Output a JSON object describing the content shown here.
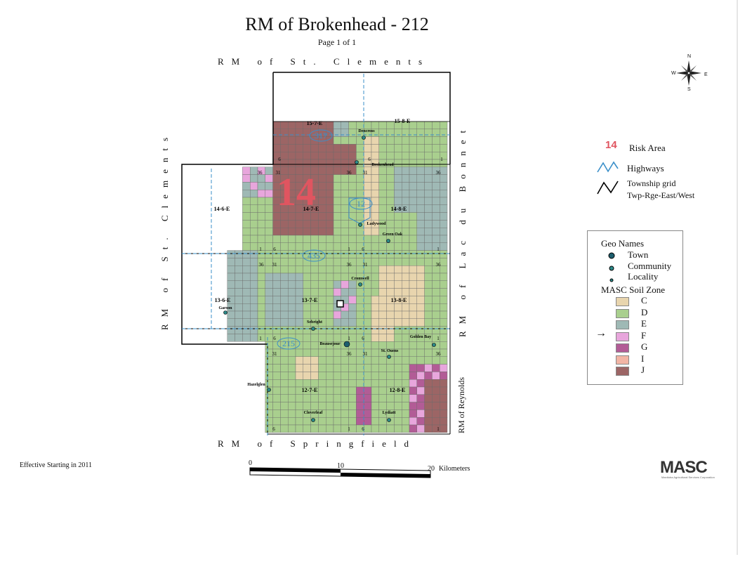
{
  "title": "RM of Brokenhead - 212",
  "subtitle": "Page 1 of 1",
  "borders": {
    "top": "RM of St. Clements",
    "left": "RM of St. Clements",
    "right": "RM of Lac du Bonnet",
    "bottom": "RM of Springfield",
    "bottom_right": "RM of Reynolds"
  },
  "compass": {
    "n": "N",
    "s": "S",
    "e": "E",
    "w": "W"
  },
  "legend": {
    "risk_area_number": "14",
    "risk_area_label": "Risk Area",
    "highways_label": "Highways",
    "township_label_1": "Township grid",
    "township_label_2": "Twp-Rge-East/West",
    "geo_names_title": "Geo Names",
    "town": "Town",
    "community": "Community",
    "locality": "Locality",
    "soil_zone_title": "MASC Soil Zone",
    "zones": [
      {
        "code": "C",
        "color": "#e8d5ae"
      },
      {
        "code": "D",
        "color": "#a9cf8e"
      },
      {
        "code": "E",
        "color": "#9fb9b5"
      },
      {
        "code": "F",
        "color": "#e8a6dc"
      },
      {
        "code": "G",
        "color": "#b25c96"
      },
      {
        "code": "I",
        "color": "#f2b5a5"
      },
      {
        "code": "J",
        "color": "#9c6565"
      }
    ],
    "arrow_marker": "→"
  },
  "map": {
    "risk_number": "14",
    "townships": [
      "15-7-E",
      "15-8-E",
      "14-6-E",
      "14-7-E",
      "14-8-E",
      "13-6-E",
      "13-7-E",
      "13-8-E",
      "12-7-E",
      "12-8-E"
    ],
    "highways": [
      "317",
      "12",
      "435",
      "215"
    ],
    "places": [
      "Dencross",
      "Brokenhead",
      "Ladywood",
      "Green Oak",
      "Cromwell",
      "Garson",
      "Sebright",
      "Beausejour",
      "Golden Bay",
      "St. Ouens",
      "Hazelglen",
      "Cloverleaf",
      "Lydiatt"
    ],
    "section_numbers": [
      "1",
      "6",
      "36",
      "31"
    ]
  },
  "scale": {
    "zero": "0",
    "mid": "10",
    "end": "20",
    "unit": "Kilometers"
  },
  "effective": "Effective Starting in 2011",
  "logo": "MASC",
  "logo_sub": "Manitoba Agricultural Services Corporation"
}
